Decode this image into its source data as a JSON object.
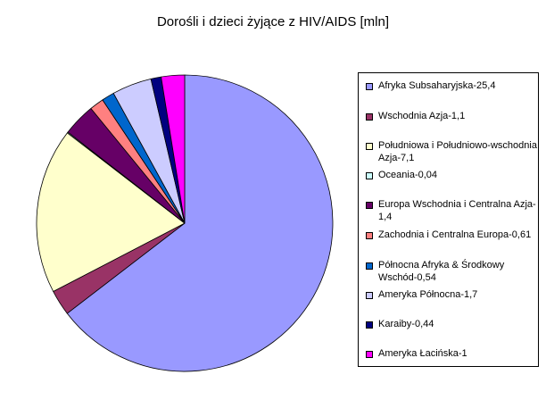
{
  "chart_data": {
    "type": "pie",
    "title": "Dorośli i dzieci żyjące z HIV/AIDS [mln]",
    "categories": [
      "Afryka Subsaharyjska-25,4",
      "Wschodnia Azja-1,1",
      "Południowa i Południowo-wschodnia Azja-7,1",
      "Oceania-0,04",
      "Europa Wschodnia i Centralna Azja-1,4",
      "Zachodnia i Centralna Europa-0,61",
      "Północna Afryka & Środkowy Wschód-0,54",
      "Ameryka Północna-1,7",
      "Karaiby-0,44",
      "Ameryka Łacińska-1"
    ],
    "values": [
      25.4,
      1.1,
      7.1,
      0.04,
      1.4,
      0.61,
      0.54,
      1.7,
      0.44,
      1.0
    ],
    "colors": [
      "#9999ff",
      "#993366",
      "#ffffcc",
      "#ccffff",
      "#660066",
      "#ff8080",
      "#0066cc",
      "#ccccff",
      "#000080",
      "#ff00ff"
    ],
    "legend_position": "right"
  }
}
